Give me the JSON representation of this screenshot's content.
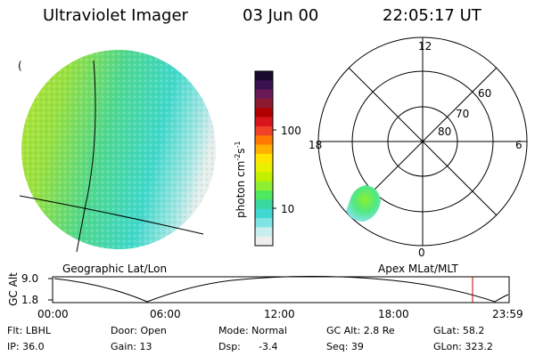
{
  "header": {
    "instrument": "Ultraviolet Imager",
    "date": "03 Jun 00",
    "time": "22:05:17 UT"
  },
  "left_panel": {
    "label": "Geographic Lat/Lon"
  },
  "right_panel": {
    "label": "Apex MLat/MLT",
    "mlt_labels": {
      "top": "12",
      "left": "18",
      "right": "6",
      "bottom": "0"
    },
    "lat_labels": [
      "60",
      "70",
      "80"
    ]
  },
  "colorbar": {
    "unit_label": "photon cm",
    "unit_sup1": "-2",
    "unit_mid": "s",
    "unit_sup2": "-1",
    "ticks": [
      "100",
      "10"
    ],
    "colors": [
      "#1a0a2e",
      "#3a1250",
      "#6a1a56",
      "#8c1a30",
      "#b00000",
      "#d8141c",
      "#f04028",
      "#ff7a00",
      "#ffb000",
      "#ffe400",
      "#e8f000",
      "#c0f000",
      "#8cf030",
      "#50e860",
      "#38d8a0",
      "#40d8d0",
      "#80e4e4",
      "#c8eeee",
      "#eeeeee"
    ]
  },
  "timeline": {
    "axis_label": "GC Alt",
    "ytick_top": "9.0",
    "ytick_bottom": "1.8",
    "xticks": [
      "00:00",
      "06:00",
      "12:00",
      "18:00",
      "23:59"
    ],
    "marker_color": "#c00000"
  },
  "info": {
    "flt": "Flt: LBHL",
    "ip": "IP: 36.0",
    "door": "Door: Open",
    "gain": "Gain: 13",
    "mode": "Mode: Normal",
    "dsp": "Dsp:",
    "dsp_value": "-3.4",
    "gcalt": "GC Alt: 2.8 Re",
    "seq": "Seq: 39",
    "glat": "GLat: 58.2",
    "glon": "GLon: 323.2"
  }
}
